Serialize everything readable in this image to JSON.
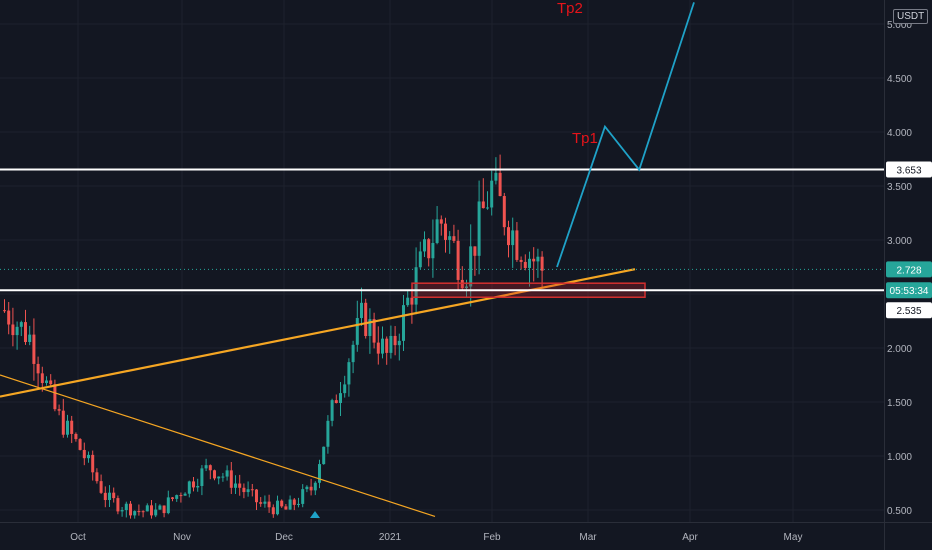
{
  "chart_data": {
    "type": "candlestick",
    "currency_label": "USDT",
    "y_ticks": [
      0.5,
      1.0,
      1.5,
      2.0,
      2.5,
      3.0,
      3.5,
      4.0,
      4.5,
      5.0
    ],
    "y_tick_labels": [
      "0.500",
      "1.000",
      "1.500",
      "2.000",
      "2.500",
      "3.000",
      "3.500",
      "4.000",
      "4.500",
      "5.000"
    ],
    "ylim": [
      0.4,
      5.2
    ],
    "x_ticks": [
      "Oct",
      "Nov",
      "Dec",
      "2021",
      "Feb",
      "Mar",
      "Apr",
      "May"
    ],
    "resistance_level": 3.653,
    "resistance_label": "3.653",
    "support_level": 2.535,
    "support_label": "2.535",
    "current_price": 2.728,
    "current_price_label": "2.728",
    "countdown_label": "05:53:34",
    "annotations": [
      "Tp1",
      "Tp2"
    ],
    "projection_path": [
      [
        0.0,
        2.75
      ],
      [
        0.35,
        4.05
      ],
      [
        0.6,
        3.65
      ],
      [
        1.0,
        5.2
      ]
    ],
    "support_zone": [
      2.47,
      2.6
    ],
    "candle_trend_closes": [
      2.35,
      2.1,
      1.4,
      1.05,
      0.6,
      0.5,
      0.48,
      0.7,
      0.9,
      0.75,
      0.55,
      0.5,
      0.7,
      1.6,
      2.3,
      1.9,
      2.6,
      3.2,
      2.7,
      3.5,
      3.0,
      2.73
    ],
    "colors": {
      "up": "#26a69a",
      "down": "#ef5350",
      "trend": "#f5a623",
      "proj": "#1fa2c8",
      "tp": "#e5141a",
      "level": "#ffffff",
      "price": "#26a69a"
    }
  }
}
